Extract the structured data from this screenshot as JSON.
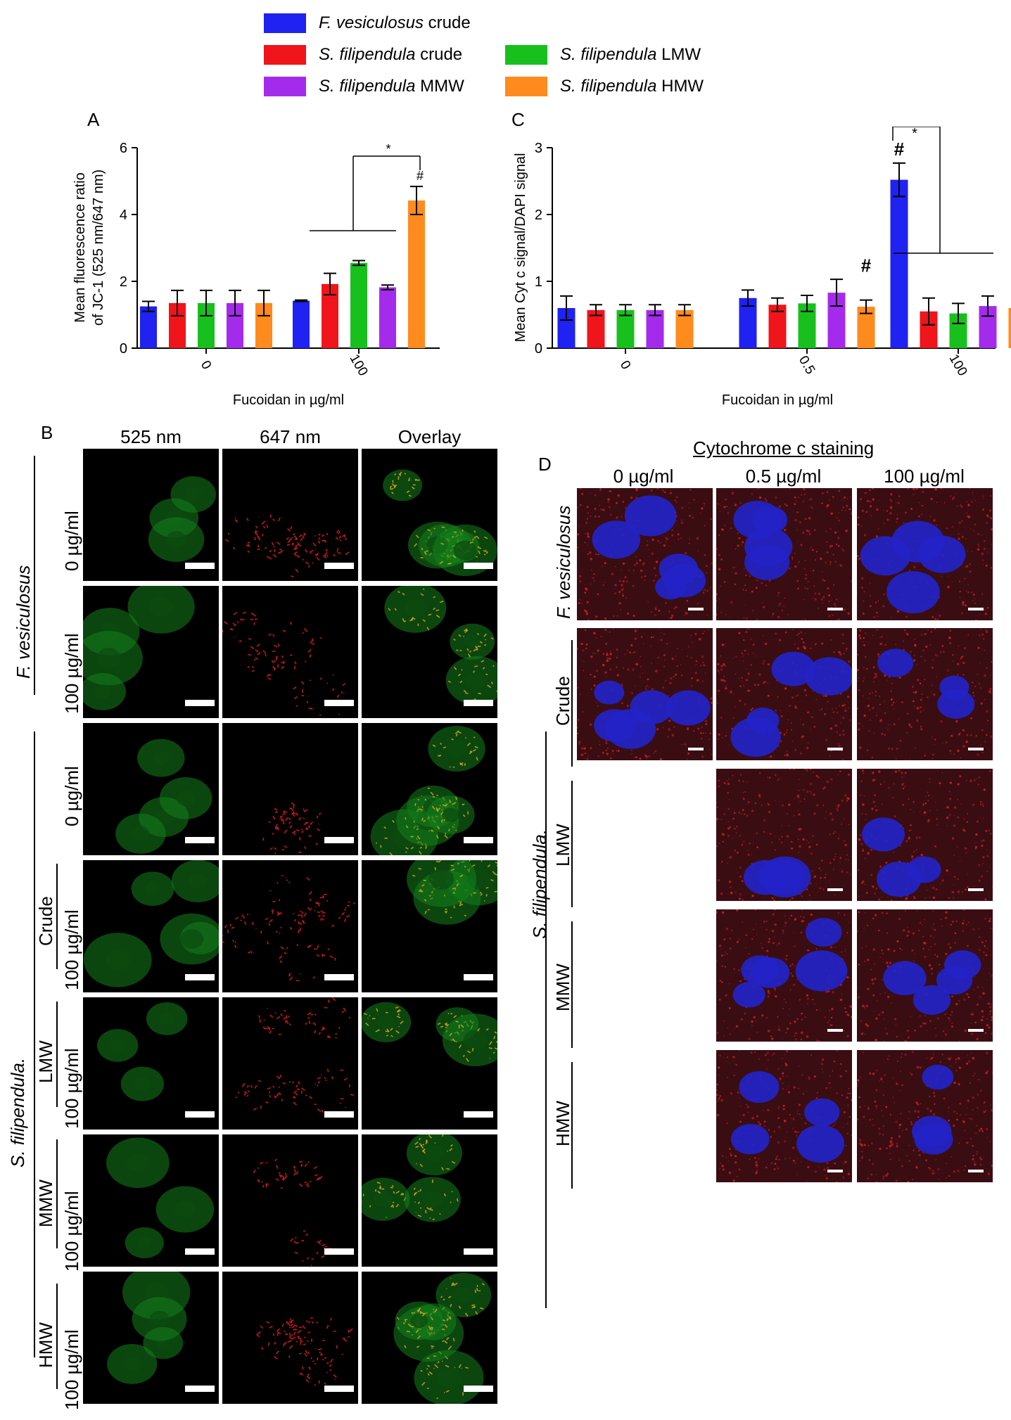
{
  "legend": [
    {
      "species": "F. vesiculosus",
      "fraction": "crude",
      "color": "#1f22f0"
    },
    {
      "species": "S. filipendula",
      "fraction": "crude",
      "color": "#f0141b"
    },
    {
      "species": "S. filipendula",
      "fraction": "LMW",
      "color": "#18c01e"
    },
    {
      "species": "S. filipendula",
      "fraction": "MMW",
      "color": "#a52bec"
    },
    {
      "species": "S. filipendula",
      "fraction": "HMW",
      "color": "#ff8a1d"
    }
  ],
  "panels": {
    "a": "A",
    "b": "B",
    "c": "C",
    "d": "D"
  },
  "chart_data": [
    {
      "type": "bar",
      "panel": "A",
      "xlabel": "Fucoidan in µg/ml",
      "ylabel_line1": "Mean fluorescence ratio",
      "ylabel_line2": "of JC-1 (525 nm/647 nm)",
      "categories": [
        "0",
        "100"
      ],
      "ylim": [
        0,
        6
      ],
      "yticks": [
        "0",
        "2",
        "4",
        "6"
      ],
      "series": [
        {
          "name": "F. vesiculosus crude",
          "values": [
            1.25,
            1.42
          ],
          "errors": [
            0.15,
            0.02
          ]
        },
        {
          "name": "S. filipendula crude",
          "values": [
            1.35,
            1.92
          ],
          "errors": [
            0.38,
            0.32
          ]
        },
        {
          "name": "S. filipendula LMW",
          "values": [
            1.35,
            2.55
          ],
          "errors": [
            0.38,
            0.07
          ]
        },
        {
          "name": "S. filipendula MMW",
          "values": [
            1.35,
            1.82
          ],
          "errors": [
            0.38,
            0.07
          ]
        },
        {
          "name": "S. filipendula HMW",
          "values": [
            1.35,
            4.42
          ],
          "errors": [
            0.38,
            0.42
          ]
        }
      ],
      "annotations": {
        "hash": "#",
        "star": "*"
      }
    },
    {
      "type": "bar",
      "panel": "C",
      "xlabel": "Fucoidan in µg/ml",
      "ylabel": "Mean  Cyt c signal/DAPI signal",
      "categories": [
        "0",
        "0.5",
        "100"
      ],
      "ylim": [
        0,
        3
      ],
      "yticks": [
        "0",
        "1",
        "2",
        "3"
      ],
      "series": [
        {
          "name": "F. vesiculosus crude",
          "values": [
            0.6,
            0.75,
            2.52
          ],
          "errors": [
            0.18,
            0.12,
            0.25
          ]
        },
        {
          "name": "S. filipendula crude",
          "values": [
            0.57,
            0.65,
            0.55
          ],
          "errors": [
            0.08,
            0.1,
            0.2
          ]
        },
        {
          "name": "S. filipendula LMW",
          "values": [
            0.57,
            0.67,
            0.52
          ],
          "errors": [
            0.08,
            0.12,
            0.15
          ]
        },
        {
          "name": "S. filipendula MMW",
          "values": [
            0.57,
            0.83,
            0.63
          ],
          "errors": [
            0.08,
            0.2,
            0.15
          ]
        },
        {
          "name": "S. filipendula HMW",
          "values": [
            0.57,
            0.62,
            0.6
          ],
          "errors": [
            0.08,
            0.1,
            0.07
          ]
        }
      ],
      "annotations": {
        "hash": "#",
        "star": "*"
      }
    }
  ],
  "panel_b": {
    "columns": [
      "525 nm",
      "647 nm",
      "Overlay"
    ],
    "groups": [
      {
        "species": "F. vesiculosus",
        "rows": [
          {
            "fraction": "",
            "dose": "0 µg/ml"
          },
          {
            "fraction": "",
            "dose": "100 µg/ml"
          }
        ]
      },
      {
        "species": "S. filipendula.",
        "rows": [
          {
            "fraction": "",
            "dose": "0 µg/ml"
          },
          {
            "fraction": "Crude",
            "dose": "100 µg/ml"
          },
          {
            "fraction": "LMW",
            "dose": "100 µg/ml"
          },
          {
            "fraction": "MMW",
            "dose": "100 µg/ml"
          },
          {
            "fraction": "HMW",
            "dose": "100 µg/ml"
          }
        ]
      }
    ]
  },
  "panel_d": {
    "title": "Cytochrome c staining",
    "columns": [
      "0 µg/ml",
      "0.5 µg/ml",
      "100 µg/ml"
    ],
    "row_f_label": "F. vesiculosus",
    "species": "S. filipendula.",
    "rows": [
      "Crude",
      "LMW",
      "MMW",
      "HMW"
    ]
  },
  "colors": {
    "green": "#1fa52a",
    "red": "#e81a1a",
    "blue": "#2222cc"
  }
}
